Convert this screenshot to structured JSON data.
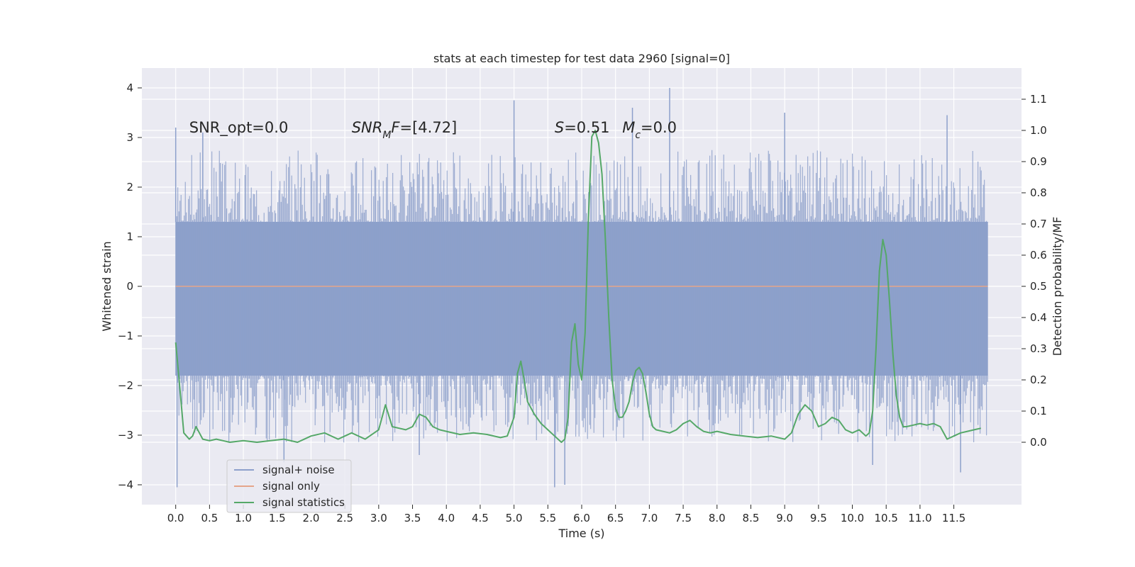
{
  "chart_data": {
    "type": "line",
    "title": "stats at each timestep for test data 2960 [signal=0]",
    "xlabel": "Time (s)",
    "ylabel": "Whitened strain",
    "ylabel_right": "Detection probability/MF",
    "xlim": [
      -0.5,
      12.5
    ],
    "ylim": [
      -4.4,
      4.4
    ],
    "ylim_right": [
      -0.2,
      1.2
    ],
    "x_ticks": [
      0.0,
      0.5,
      1.0,
      1.5,
      2.0,
      2.5,
      3.0,
      3.5,
      4.0,
      4.5,
      5.0,
      5.5,
      6.0,
      6.5,
      7.0,
      7.5,
      8.0,
      8.5,
      9.0,
      9.5,
      10.0,
      10.5,
      11.0,
      11.5
    ],
    "x_tick_labels": [
      "0.0",
      "0.5",
      "1.0",
      "1.5",
      "2.0",
      "2.5",
      "3.0",
      "3.5",
      "4.0",
      "4.5",
      "5.0",
      "5.5",
      "6.0",
      "6.5",
      "7.0",
      "7.5",
      "8.0",
      "8.5",
      "9.0",
      "9.5",
      "10.0",
      "10.5",
      "11.0",
      "11.5"
    ],
    "y_ticks": [
      4,
      3,
      2,
      1,
      0,
      -1,
      -2,
      -3,
      -4
    ],
    "y_tick_labels": [
      "4",
      "3",
      "2",
      "1",
      "0",
      "−1",
      "−2",
      "−3",
      "−4"
    ],
    "y_ticks_right": [
      1.1,
      1.0,
      0.9,
      0.8,
      0.7,
      0.6,
      0.5,
      0.4,
      0.3,
      0.2,
      0.1,
      0.0
    ],
    "y_tick_labels_right": [
      "1.1",
      "1.0",
      "0.9",
      "0.8",
      "0.7",
      "0.6",
      "0.5",
      "0.4",
      "0.3",
      "0.2",
      "0.1",
      "0.0"
    ],
    "grid": true,
    "legend_position": "lower-left",
    "series": [
      {
        "name": "signal+ noise",
        "color": "#8da0cb",
        "kind": "noise-band",
        "x_range": [
          0.0,
          12.0
        ],
        "band_upper": 1.3,
        "band_lower": -1.8,
        "spikes": [
          {
            "x": 0.0,
            "y": 3.2
          },
          {
            "x": 0.02,
            "y": -4.05
          },
          {
            "x": 0.4,
            "y": 3.1
          },
          {
            "x": 1.6,
            "y": -3.55
          },
          {
            "x": 3.6,
            "y": -3.4
          },
          {
            "x": 5.0,
            "y": 3.75
          },
          {
            "x": 5.6,
            "y": -4.05
          },
          {
            "x": 5.75,
            "y": -4.0
          },
          {
            "x": 6.75,
            "y": 3.6
          },
          {
            "x": 7.3,
            "y": 4.0
          },
          {
            "x": 9.0,
            "y": 3.5
          },
          {
            "x": 10.3,
            "y": -3.6
          },
          {
            "x": 11.4,
            "y": 3.45
          },
          {
            "x": 11.6,
            "y": -3.75
          }
        ]
      },
      {
        "name": "signal only",
        "color": "#e5a58a",
        "axis": "left",
        "x": [
          0.0,
          12.0
        ],
        "y": [
          0.0,
          0.0
        ]
      },
      {
        "name": "signal statistics",
        "color": "#55a868",
        "axis": "right",
        "x": [
          0.0,
          0.05,
          0.12,
          0.2,
          0.25,
          0.3,
          0.35,
          0.4,
          0.5,
          0.6,
          0.7,
          0.8,
          1.0,
          1.2,
          1.4,
          1.6,
          1.8,
          2.0,
          2.2,
          2.4,
          2.5,
          2.6,
          2.8,
          3.0,
          3.1,
          3.2,
          3.3,
          3.4,
          3.5,
          3.6,
          3.7,
          3.8,
          3.9,
          4.0,
          4.2,
          4.4,
          4.6,
          4.8,
          4.9,
          5.0,
          5.05,
          5.1,
          5.15,
          5.2,
          5.3,
          5.4,
          5.5,
          5.6,
          5.7,
          5.75,
          5.8,
          5.85,
          5.9,
          5.95,
          6.0,
          6.05,
          6.1,
          6.15,
          6.2,
          6.25,
          6.3,
          6.35,
          6.4,
          6.45,
          6.5,
          6.55,
          6.6,
          6.65,
          6.7,
          6.75,
          6.8,
          6.85,
          6.9,
          6.95,
          7.0,
          7.05,
          7.1,
          7.2,
          7.3,
          7.4,
          7.5,
          7.6,
          7.7,
          7.8,
          7.9,
          8.0,
          8.2,
          8.4,
          8.6,
          8.8,
          9.0,
          9.1,
          9.2,
          9.3,
          9.4,
          9.5,
          9.6,
          9.7,
          9.8,
          9.9,
          10.0,
          10.1,
          10.2,
          10.25,
          10.3,
          10.35,
          10.4,
          10.45,
          10.5,
          10.55,
          10.6,
          10.65,
          10.7,
          10.75,
          10.8,
          10.9,
          11.0,
          11.1,
          11.2,
          11.3,
          11.4,
          11.5,
          11.6,
          11.7,
          11.8,
          11.9
        ],
        "y": [
          0.32,
          0.2,
          0.03,
          0.01,
          0.02,
          0.05,
          0.03,
          0.01,
          0.005,
          0.01,
          0.005,
          0.0,
          0.005,
          0.0,
          0.005,
          0.01,
          0.0,
          0.02,
          0.03,
          0.01,
          0.02,
          0.03,
          0.01,
          0.04,
          0.12,
          0.05,
          0.045,
          0.04,
          0.05,
          0.09,
          0.08,
          0.05,
          0.04,
          0.035,
          0.025,
          0.03,
          0.025,
          0.015,
          0.02,
          0.08,
          0.22,
          0.26,
          0.2,
          0.13,
          0.09,
          0.06,
          0.04,
          0.02,
          0.0,
          0.01,
          0.08,
          0.32,
          0.38,
          0.25,
          0.2,
          0.35,
          0.72,
          0.98,
          1.0,
          0.96,
          0.86,
          0.65,
          0.4,
          0.2,
          0.11,
          0.08,
          0.08,
          0.1,
          0.13,
          0.19,
          0.23,
          0.24,
          0.22,
          0.16,
          0.09,
          0.05,
          0.04,
          0.035,
          0.03,
          0.04,
          0.06,
          0.07,
          0.05,
          0.035,
          0.03,
          0.035,
          0.025,
          0.02,
          0.015,
          0.02,
          0.01,
          0.03,
          0.09,
          0.12,
          0.1,
          0.05,
          0.06,
          0.08,
          0.07,
          0.04,
          0.03,
          0.04,
          0.02,
          0.03,
          0.1,
          0.3,
          0.55,
          0.65,
          0.6,
          0.45,
          0.28,
          0.15,
          0.08,
          0.05,
          0.05,
          0.055,
          0.06,
          0.055,
          0.06,
          0.05,
          0.01,
          0.02,
          0.03,
          0.035,
          0.04,
          0.045
        ]
      }
    ],
    "annotations": [
      {
        "x": 0.2,
        "y": 3.2,
        "parts": [
          {
            "text": "SNR_opt=0.0",
            "italic": false,
            "sub": false
          }
        ]
      },
      {
        "x": 2.6,
        "y": 3.2,
        "parts": [
          {
            "text": "SNR",
            "italic": true,
            "sub": false
          },
          {
            "text": "M",
            "italic": true,
            "sub": true
          },
          {
            "text": "F",
            "italic": true,
            "sub": false
          },
          {
            "text": "=[4.72]",
            "italic": false,
            "sub": false
          }
        ]
      },
      {
        "x": 5.6,
        "y": 3.2,
        "parts": [
          {
            "text": "S",
            "italic": true,
            "sub": false
          },
          {
            "text": "=0.51",
            "italic": false,
            "sub": false
          }
        ]
      },
      {
        "x": 6.6,
        "y": 3.2,
        "parts": [
          {
            "text": "M",
            "italic": true,
            "sub": false
          },
          {
            "text": "c",
            "italic": true,
            "sub": true
          },
          {
            "text": "=0.0",
            "italic": false,
            "sub": false
          }
        ]
      }
    ]
  }
}
